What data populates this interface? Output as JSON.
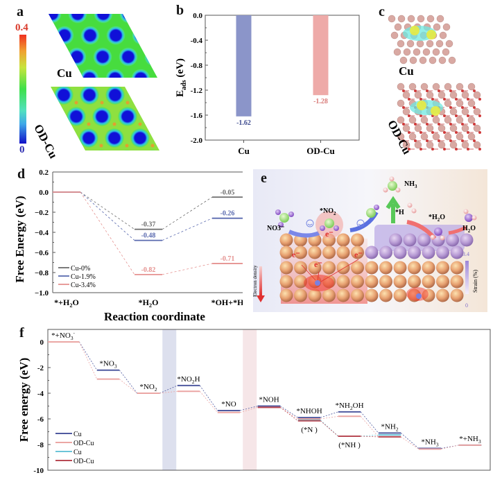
{
  "panels": {
    "a": {
      "label": "a",
      "colorbar": {
        "max_label": "0.4",
        "min_label": "0",
        "max_color": "#d93a2b",
        "min_color": "#2b2bb0"
      },
      "maps": [
        {
          "name": "Cu"
        },
        {
          "name": "OD-Cu"
        }
      ]
    },
    "b": {
      "label": "b"
    },
    "c": {
      "label": "c",
      "structures": [
        {
          "name": "Cu"
        },
        {
          "name": "OD-Cu"
        }
      ]
    },
    "d": {
      "label": "d"
    },
    "e": {
      "label": "e",
      "species": {
        "nh3": "NH3",
        "no3": "NO3⁻",
        "no2": "*NO2",
        "h": "*H",
        "h2o_ads": "*H2O",
        "h2o": "H2O",
        "electron": "e⁻"
      },
      "side_labels": {
        "electron_density": "Electron density",
        "strain": "Strain (%)",
        "strain_max": "3.4",
        "strain_min": "0"
      },
      "icons": [
        "smiley-icon",
        "smiley-icon"
      ]
    },
    "f": {
      "label": "f"
    }
  },
  "chart_data": [
    {
      "id": "b",
      "type": "bar",
      "categories": [
        "Cu",
        "OD-Cu"
      ],
      "values": [
        -1.62,
        -1.28
      ],
      "data_labels": [
        "-1.62",
        "-1.28"
      ],
      "colors": [
        "#8b95c9",
        "#eeaaa8"
      ],
      "label_colors": [
        "#3d4a8f",
        "#d87a78"
      ],
      "title": "",
      "xlabel": "",
      "ylabel": "E_ads (eV)",
      "ylabel_main": "E",
      "ylabel_sub": "ads",
      "ylabel_unit": " (eV)",
      "ylim": [
        -2.0,
        0.0
      ],
      "yticks": [
        0.0,
        -0.4,
        -0.8,
        -1.2,
        -1.6,
        -2.0
      ],
      "ytick_labels": [
        "0.0",
        "-0.4",
        "-0.8",
        "-1.2",
        "-1.6",
        "-2.0"
      ],
      "grid": false
    },
    {
      "id": "d",
      "type": "line",
      "title": "",
      "xlabel": "Reaction coordinate",
      "ylabel": "Free Energy (eV)",
      "categories": [
        "*+H2O",
        "*H2O",
        "*OH+*H"
      ],
      "category_labels": [
        {
          "pre": "*+H",
          "sub": "2",
          "post": "O"
        },
        {
          "pre": "*H",
          "sub": "2",
          "post": "O"
        },
        {
          "pre": "*OH+*H",
          "sub": "",
          "post": ""
        }
      ],
      "ylim": [
        -1.0,
        0.2
      ],
      "yticks": [
        0.2,
        0.0,
        -0.2,
        -0.4,
        -0.6,
        -0.8,
        -1.0
      ],
      "ytick_labels": [
        "0.2",
        "0.0",
        "−0.2",
        "−0.4",
        "−0.6",
        "−0.8",
        "−1.0"
      ],
      "series": [
        {
          "name": "Cu-0%",
          "color": "#6b6b6b",
          "values": [
            0.0,
            -0.37,
            -0.05
          ],
          "labels": [
            "",
            "-0.37",
            "-0.05"
          ]
        },
        {
          "name": "Cu-1.9%",
          "color": "#5a6aaf",
          "values": [
            0.0,
            -0.48,
            -0.26
          ],
          "labels": [
            "",
            "-0.48",
            "-0.26"
          ]
        },
        {
          "name": "Cu-3.4%",
          "color": "#e59290",
          "values": [
            0.0,
            -0.82,
            -0.71
          ],
          "labels": [
            "",
            "-0.82",
            "-0.71"
          ]
        }
      ],
      "legend": "bottom-left",
      "grid": false
    },
    {
      "id": "f",
      "type": "line",
      "title": "",
      "xlabel": "",
      "ylabel": "Free energy (eV)",
      "ylim": [
        -10,
        1
      ],
      "yticks": [
        0,
        -2,
        -4,
        -6,
        -8,
        -10
      ],
      "ytick_labels": [
        "0",
        "-2",
        "-4",
        "-6",
        "-8",
        "-10"
      ],
      "steps": [
        {
          "label": "*+NO3⁻",
          "pre": "*+NO",
          "sub": "3",
          "post": "",
          "sup": "-"
        },
        {
          "label": "*NO3",
          "pre": "*NO",
          "sub": "3",
          "post": ""
        },
        {
          "label": "*NO2",
          "pre": "*NO",
          "sub": "2",
          "post": ""
        },
        {
          "label": "*NO2H",
          "pre": "*NO",
          "sub": "2",
          "post": "H"
        },
        {
          "label": "*NO",
          "pre": "*NO",
          "sub": "",
          "post": ""
        },
        {
          "label": "*NOH",
          "pre": "*NOH",
          "sub": "",
          "post": ""
        },
        {
          "label": "*NHOH",
          "pre": "*NHOH",
          "sub": "",
          "post": ""
        },
        {
          "label": "*NH2OH",
          "pre": "*NH",
          "sub": "2",
          "post": "OH"
        },
        {
          "label": "*NH2",
          "pre": "*NH",
          "sub": "2",
          "post": ""
        },
        {
          "label": "*NH3",
          "pre": "*NH",
          "sub": "3",
          "post": ""
        },
        {
          "label": "*+NH3",
          "pre": "*+NH",
          "sub": "3",
          "post": ""
        }
      ],
      "alt_steps": [
        {
          "label": "(*N )",
          "step_index": 6
        },
        {
          "label": "(*NH )",
          "step_index": 7
        }
      ],
      "series": [
        {
          "name": "Cu",
          "color": "#4f5aa0",
          "values": [
            0.0,
            -2.2,
            -4.0,
            -3.4,
            -5.35,
            -5.0,
            -5.9,
            -5.45,
            -7.1,
            -8.3,
            -8.05
          ]
        },
        {
          "name": "OD-Cu",
          "color": "#eba6a4",
          "values": [
            0.0,
            -2.9,
            -4.0,
            -3.85,
            -5.5,
            -5.1,
            -6.0,
            -5.8,
            -7.4,
            -8.35,
            -8.05
          ]
        },
        {
          "name": "Cu",
          "color": "#6cc5d8",
          "values": [
            null,
            null,
            null,
            null,
            null,
            null,
            -6.1,
            -7.35,
            -7.25,
            null,
            null
          ]
        },
        {
          "name": "OD-Cu",
          "color": "#b84a55",
          "values": [
            null,
            null,
            null,
            null,
            null,
            -5.1,
            -6.15,
            -7.35,
            -7.4,
            null,
            null
          ]
        }
      ],
      "highlight_bands": [
        {
          "between_steps": [
            2,
            3
          ],
          "color": "#dde0ee"
        },
        {
          "between_steps": [
            4,
            5
          ],
          "color": "#f6e6e8"
        }
      ],
      "legend": "bottom-left",
      "grid": false
    }
  ]
}
